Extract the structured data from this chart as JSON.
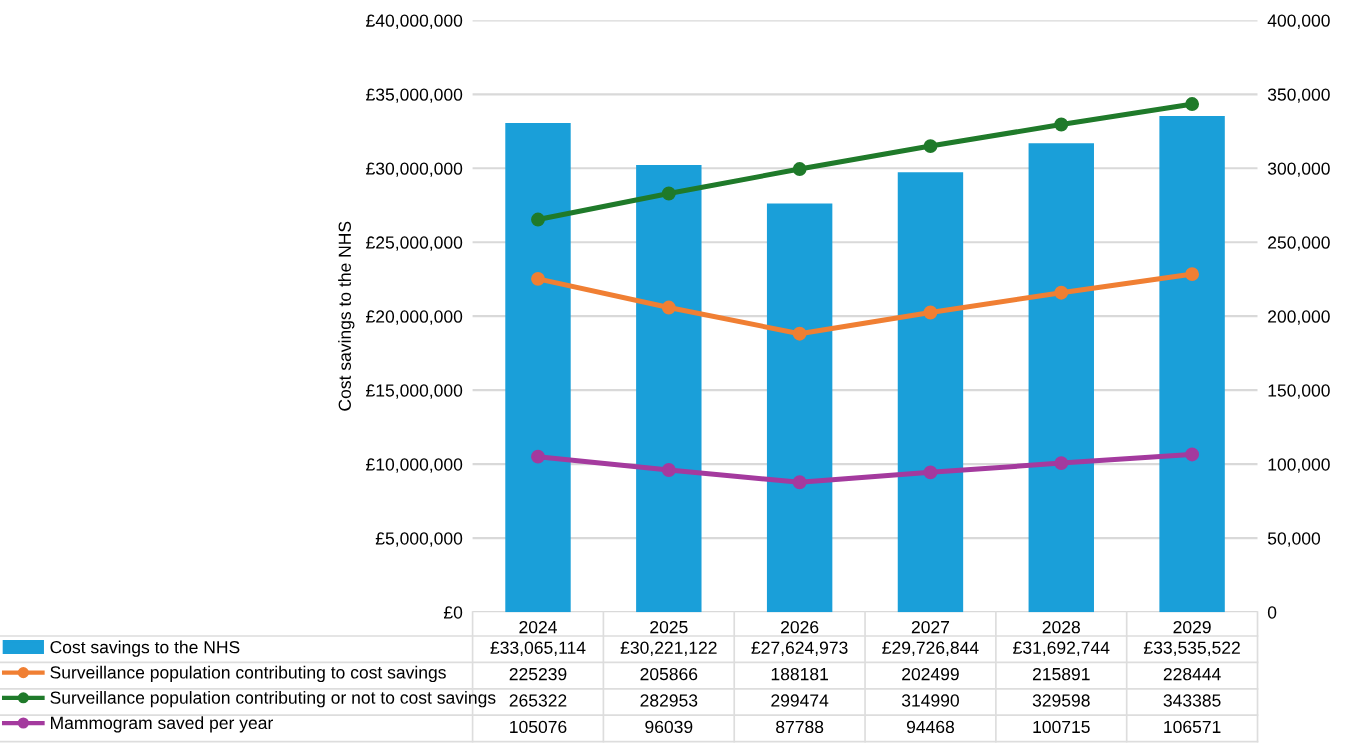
{
  "chart_data": {
    "type": "bar",
    "ylabel": "Cost savings to the NHS",
    "categories": [
      "2024",
      "2025",
      "2026",
      "2027",
      "2028",
      "2029"
    ],
    "series": [
      {
        "name": "Cost savings to the NHS",
        "color": "#1a9fd9",
        "values": [
          33065114,
          30221122,
          27624973,
          29726844,
          31692744,
          33535522
        ],
        "value_labels": [
          "£33,065,114",
          "£30,221,122",
          "£27,624,973",
          "£29,726,844",
          "£31,692,744",
          "£33,535,522"
        ]
      },
      {
        "name": "Surveillance population contributing to cost savings",
        "type": "line",
        "axis": "y2",
        "color": "#f07f33",
        "values": [
          225239,
          205866,
          188181,
          202499,
          215891,
          228444
        ],
        "value_labels": [
          "225239",
          "205866",
          "188181",
          "202499",
          "215891",
          "228444"
        ]
      },
      {
        "name": "Surveillance population contributing or not to cost savings",
        "type": "line",
        "axis": "y2",
        "color": "#1f7a2a",
        "values": [
          265322,
          282953,
          299474,
          314990,
          329598,
          343385
        ],
        "value_labels": [
          "265322",
          "282953",
          "299474",
          "314990",
          "329598",
          "343385"
        ]
      },
      {
        "name": "Mammogram saved per year",
        "type": "line",
        "axis": "y2",
        "color": "#a43a9e",
        "values": [
          105076,
          96039,
          87788,
          94468,
          100715,
          106571
        ],
        "value_labels": [
          "105076",
          "96039",
          "87788",
          "94468",
          "100715",
          "106571"
        ]
      }
    ],
    "ylim": [
      0,
      40000000
    ],
    "yticks": [
      {
        "value": 0,
        "label": "£0"
      },
      {
        "value": 5000000,
        "label": "£5,000,000"
      },
      {
        "value": 10000000,
        "label": "£10,000,000"
      },
      {
        "value": 15000000,
        "label": "£15,000,000"
      },
      {
        "value": 20000000,
        "label": "£20,000,000"
      },
      {
        "value": 25000000,
        "label": "£25,000,000"
      },
      {
        "value": 30000000,
        "label": "£30,000,000"
      },
      {
        "value": 35000000,
        "label": "£35,000,000"
      },
      {
        "value": 40000000,
        "label": "£40,000,000"
      }
    ],
    "y2lim": [
      0,
      400000
    ],
    "y2ticks": [
      0,
      {
        "value": 50000,
        "label": "50,000"
      },
      {
        "value": 100000,
        "label": "100,000"
      },
      {
        "value": 150000,
        "label": "150,000"
      },
      {
        "value": 200000,
        "label": "200,000"
      },
      {
        "value": 250000,
        "label": "250,000"
      },
      {
        "value": 300000,
        "label": "300,000"
      },
      {
        "value": 350000,
        "label": "350,000"
      },
      {
        "value": 400000,
        "label": "400,000"
      }
    ],
    "grid": "y",
    "legend": "bottom",
    "marker": "circle",
    "line_style": "solid"
  }
}
